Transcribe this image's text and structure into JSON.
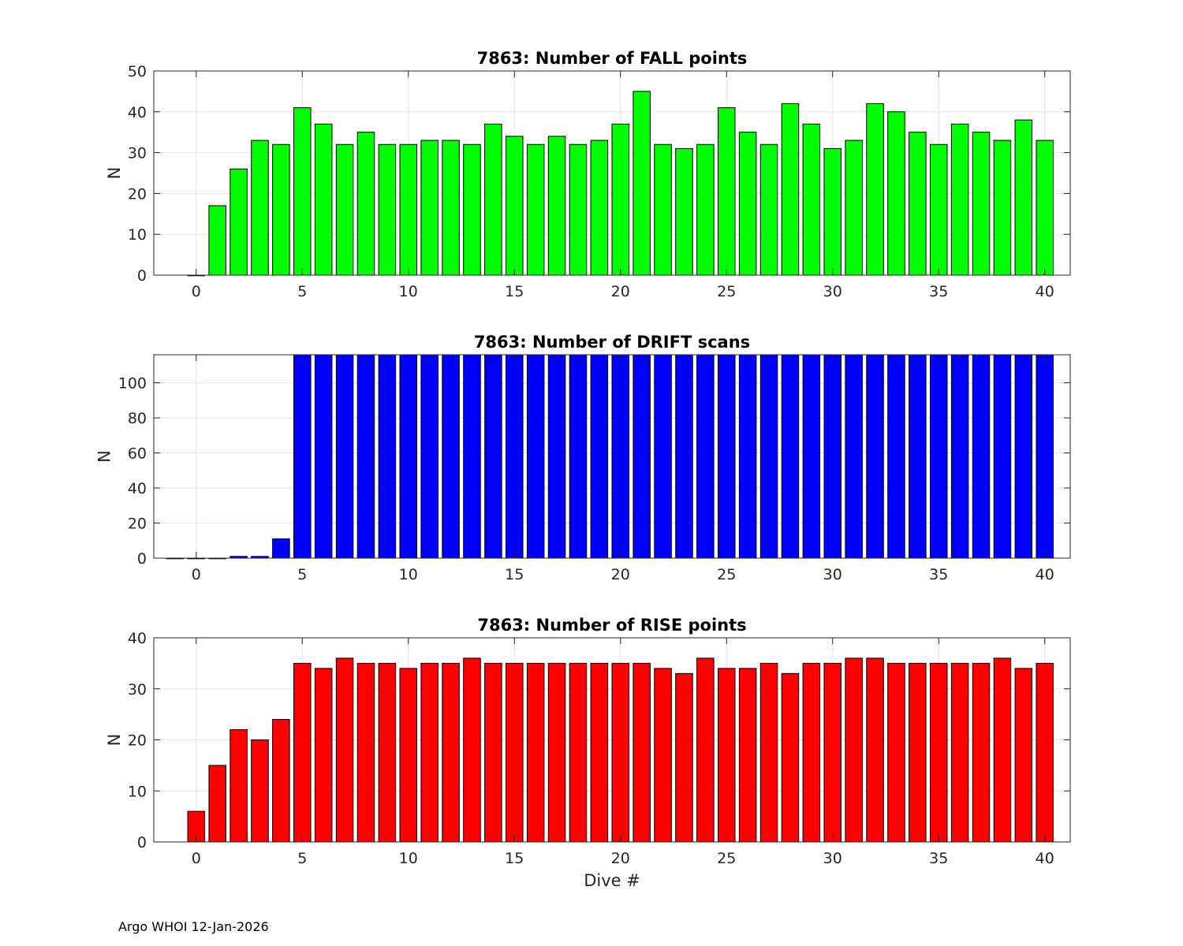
{
  "footer": "Argo WHOI 12-Jan-2026",
  "chart_data": [
    {
      "type": "bar",
      "title": "7863: Number of FALL points",
      "xlabel": "",
      "ylabel": "N",
      "xlim": [
        -2,
        41.2
      ],
      "ylim": [
        0,
        50
      ],
      "xticks": [
        0,
        5,
        10,
        15,
        20,
        25,
        30,
        35,
        40
      ],
      "yticks": [
        0,
        10,
        20,
        30,
        40,
        50
      ],
      "grid": true,
      "color": "#00ff00",
      "x": [
        0,
        1,
        2,
        3,
        4,
        5,
        6,
        7,
        8,
        9,
        10,
        11,
        12,
        13,
        14,
        15,
        16,
        17,
        18,
        19,
        20,
        21,
        22,
        23,
        24,
        25,
        26,
        27,
        28,
        29,
        30,
        31,
        32,
        33,
        34,
        35,
        36,
        37,
        38,
        39,
        40
      ],
      "values": [
        0,
        17,
        26,
        33,
        32,
        41,
        37,
        32,
        35,
        32,
        32,
        33,
        33,
        32,
        37,
        34,
        32,
        34,
        32,
        33,
        37,
        45,
        32,
        31,
        32,
        41,
        35,
        32,
        42,
        37,
        31,
        33,
        42,
        40,
        35,
        32,
        37,
        35,
        33,
        38,
        33
      ]
    },
    {
      "type": "bar",
      "title": "7863: Number of DRIFT scans",
      "xlabel": "",
      "ylabel": "N",
      "xlim": [
        -2,
        41.2
      ],
      "ylim": [
        0,
        116
      ],
      "xticks": [
        0,
        5,
        10,
        15,
        20,
        25,
        30,
        35,
        40
      ],
      "yticks": [
        0,
        20,
        40,
        60,
        80,
        100
      ],
      "grid": true,
      "color": "#0000ff",
      "x": [
        -1,
        0,
        1,
        2,
        3,
        4,
        5,
        6,
        7,
        8,
        9,
        10,
        11,
        12,
        13,
        14,
        15,
        16,
        17,
        18,
        19,
        20,
        21,
        22,
        23,
        24,
        25,
        26,
        27,
        28,
        29,
        30,
        31,
        32,
        33,
        34,
        35,
        36,
        37,
        38,
        39,
        40
      ],
      "values": [
        0,
        0,
        0,
        1,
        1,
        11,
        116,
        116,
        116,
        116,
        116,
        116,
        116,
        116,
        116,
        116,
        116,
        116,
        116,
        116,
        116,
        116,
        116,
        116,
        116,
        116,
        116,
        116,
        116,
        116,
        116,
        116,
        116,
        116,
        116,
        116,
        116,
        116,
        116,
        116,
        116,
        116
      ]
    },
    {
      "type": "bar",
      "title": "7863: Number of RISE points",
      "xlabel": "Dive #",
      "ylabel": "N",
      "xlim": [
        -2,
        41.2
      ],
      "ylim": [
        0,
        40
      ],
      "xticks": [
        0,
        5,
        10,
        15,
        20,
        25,
        30,
        35,
        40
      ],
      "yticks": [
        0,
        10,
        20,
        30,
        40
      ],
      "grid": true,
      "color": "#ff0000",
      "x": [
        0,
        1,
        2,
        3,
        4,
        5,
        6,
        7,
        8,
        9,
        10,
        11,
        12,
        13,
        14,
        15,
        16,
        17,
        18,
        19,
        20,
        21,
        22,
        23,
        24,
        25,
        26,
        27,
        28,
        29,
        30,
        31,
        32,
        33,
        34,
        35,
        36,
        37,
        38,
        39,
        40
      ],
      "values": [
        6,
        15,
        22,
        20,
        24,
        35,
        34,
        36,
        35,
        35,
        34,
        35,
        35,
        36,
        35,
        35,
        35,
        35,
        35,
        35,
        35,
        35,
        34,
        33,
        36,
        34,
        34,
        35,
        33,
        35,
        35,
        36,
        36,
        35,
        35,
        35,
        35,
        35,
        36,
        34,
        35
      ]
    }
  ]
}
